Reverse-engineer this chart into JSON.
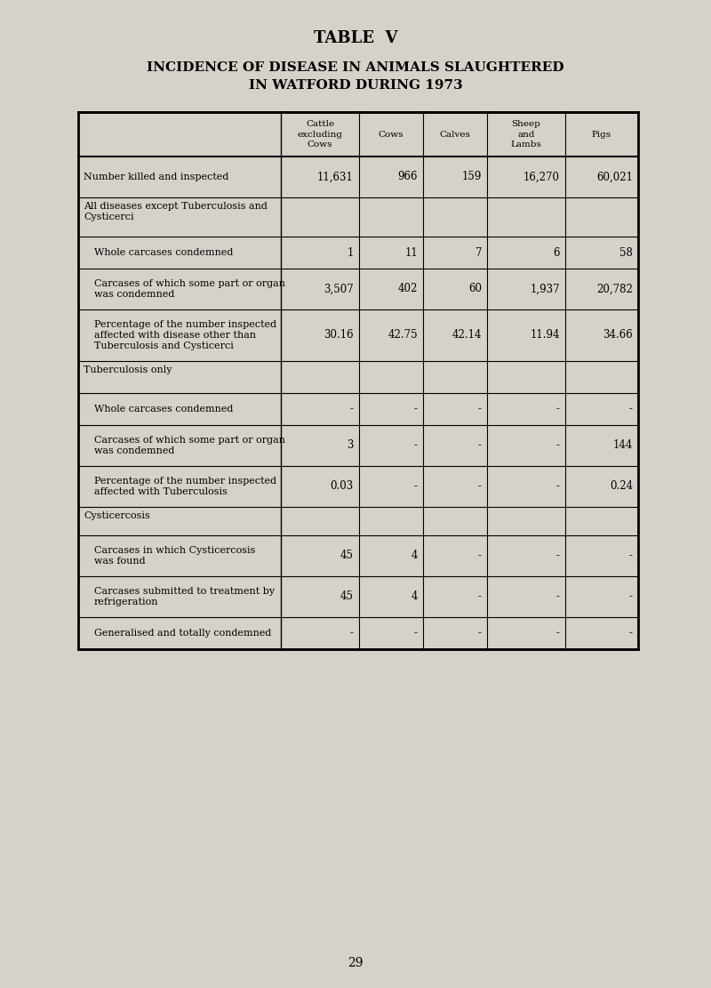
{
  "title_line1": "TABLE  V",
  "title_line2": "INCIDENCE OF DISEASE IN ANIMALS SLAUGHTERED",
  "title_line3": "IN WATFORD DURING 1973",
  "page_number": "29",
  "background_color": "#d6d2ca",
  "col_headers": [
    "Cattle\nexcluding\nCows",
    "Cows",
    "Calves",
    "Sheep\nand\nLambs",
    "Pigs"
  ],
  "rows": [
    {
      "label": "Number killed and inspected",
      "indent": 0,
      "section_header": false,
      "values": [
        "11,631",
        "966",
        "159",
        "16,270",
        "60,021"
      ]
    },
    {
      "label": "All diseases except Tuberculosis and\nCysticerci",
      "indent": 0,
      "section_header": true,
      "values": [
        "",
        "",
        "",
        "",
        ""
      ]
    },
    {
      "label": "Whole carcases condemned",
      "indent": 1,
      "section_header": false,
      "values": [
        "1",
        "11",
        "7",
        "6",
        "58"
      ]
    },
    {
      "label": "Carcases of which some part or organ\nwas condemned",
      "indent": 1,
      "section_header": false,
      "values": [
        "3,507",
        "402",
        "60",
        "1,937",
        "20,782"
      ]
    },
    {
      "label": "Percentage of the number inspected\naffected with disease other than\nTuberculosis and Cysticerci",
      "indent": 1,
      "section_header": false,
      "values": [
        "30.16",
        "42.75",
        "42.14",
        "11.94",
        "34.66"
      ]
    },
    {
      "label": "Tuberculosis only",
      "indent": 0,
      "section_header": true,
      "values": [
        "",
        "",
        "",
        "",
        ""
      ]
    },
    {
      "label": "Whole carcases condemned",
      "indent": 1,
      "section_header": false,
      "values": [
        "-",
        "-",
        "-",
        "-",
        "-"
      ]
    },
    {
      "label": "Carcases of which some part or organ\nwas condemned",
      "indent": 1,
      "section_header": false,
      "values": [
        "3",
        "-",
        "-",
        "-",
        "144"
      ]
    },
    {
      "label": "Percentage of the number inspected\naffected with Tuberculosis",
      "indent": 1,
      "section_header": false,
      "values": [
        "0.03",
        "-",
        "-",
        "-",
        "0.24"
      ]
    },
    {
      "label": "Cysticercosis",
      "indent": 0,
      "section_header": true,
      "values": [
        "",
        "",
        "",
        "",
        ""
      ]
    },
    {
      "label": "Carcases in which Cysticercosis\nwas found",
      "indent": 1,
      "section_header": false,
      "values": [
        "45",
        "4",
        "-",
        "-",
        "-"
      ]
    },
    {
      "label": "Carcases submitted to treatment by\nrefrigeration",
      "indent": 1,
      "section_header": false,
      "values": [
        "45",
        "4",
        "-",
        "-",
        "-"
      ]
    },
    {
      "label": "Generalised and totally condemned",
      "indent": 1,
      "section_header": false,
      "values": [
        "-",
        "-",
        "-",
        "-",
        "-"
      ]
    }
  ]
}
